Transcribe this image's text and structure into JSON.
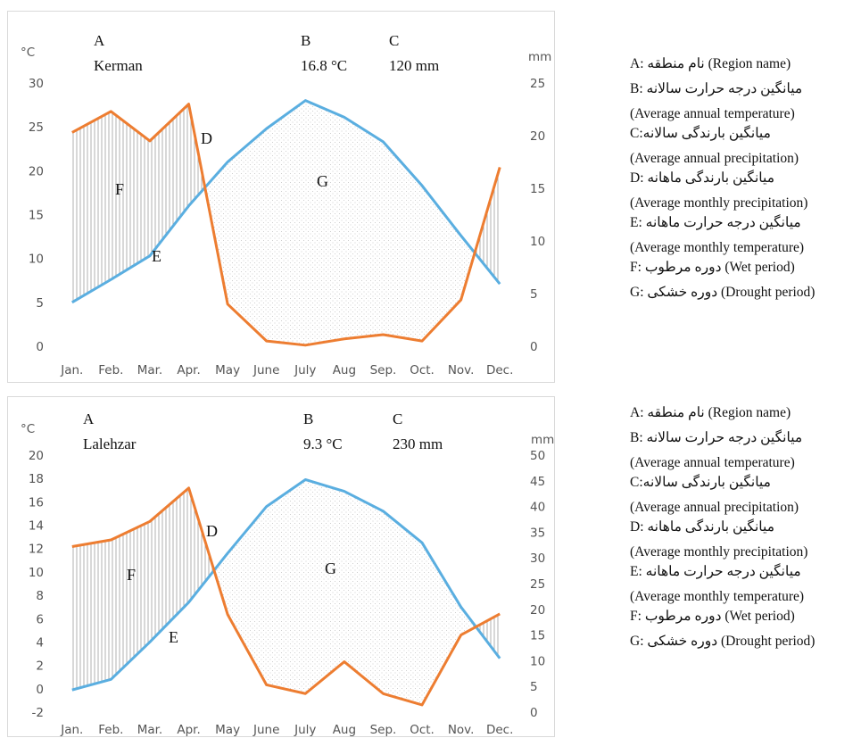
{
  "chart_data": [
    {
      "type": "line",
      "header": {
        "a_label": "A",
        "region": "Kerman",
        "b_label": "B",
        "avg_temp": "16.8 °C",
        "c_label": "C",
        "avg_precip": "120 mm"
      },
      "left_unit": "°C",
      "right_unit": "mm",
      "categories": [
        "Jan.",
        "Feb.",
        "Mar.",
        "Apr.",
        "May",
        "June",
        "July",
        "Aug",
        "Sep.",
        "Oct.",
        "Nov.",
        "Dec."
      ],
      "left_ticks": [
        "0",
        "5",
        "10",
        "15",
        "20",
        "25",
        "30"
      ],
      "right_ticks": [
        "0",
        "5",
        "10",
        "15",
        "20",
        "25"
      ],
      "ylim_left": [
        0,
        30
      ],
      "ylim_right": [
        0,
        25
      ],
      "series": [
        {
          "name": "Average monthly temperature",
          "axis": "left",
          "color": "#5aaee0",
          "values": [
            5.0,
            7.6,
            10.3,
            16.0,
            21.0,
            24.8,
            28.0,
            26.1,
            23.3,
            18.3,
            12.6,
            7.1
          ]
        },
        {
          "name": "Average monthly precipitation",
          "axis": "right",
          "color": "#ed7d31",
          "values": [
            20.3,
            22.3,
            19.5,
            23.0,
            4.0,
            0.5,
            0.1,
            0.7,
            1.1,
            0.5,
            4.4,
            17.0
          ]
        }
      ],
      "region_labels": {
        "D": "D",
        "E": "E",
        "F": "F",
        "G": "G"
      }
    },
    {
      "type": "line",
      "header": {
        "a_label": "A",
        "region": "Lalehzar",
        "b_label": "B",
        "avg_temp": "9.3 °C",
        "c_label": "C",
        "avg_precip": "230 mm"
      },
      "left_unit": "°C",
      "right_unit": "mm",
      "categories": [
        "Jan.",
        "Feb.",
        "Mar.",
        "Apr.",
        "May",
        "June",
        "July",
        "Aug",
        "Sep.",
        "Oct.",
        "Nov.",
        "Dec."
      ],
      "left_ticks": [
        "-2",
        "0",
        "2",
        "4",
        "6",
        "8",
        "10",
        "12",
        "14",
        "16",
        "18",
        "20"
      ],
      "right_ticks": [
        "0",
        "5",
        "10",
        "15",
        "20",
        "25",
        "30",
        "35",
        "40",
        "45",
        "50"
      ],
      "ylim_left": [
        -2,
        20
      ],
      "ylim_right": [
        0,
        50
      ],
      "series": [
        {
          "name": "Average monthly temperature",
          "axis": "left",
          "color": "#5aaee0",
          "values": [
            -0.1,
            0.8,
            4.0,
            7.4,
            11.6,
            15.6,
            17.9,
            16.9,
            15.2,
            12.5,
            7.0,
            2.6
          ]
        },
        {
          "name": "Average monthly precipitation",
          "axis": "right",
          "color": "#ed7d31",
          "values": [
            32.2,
            33.5,
            37.1,
            43.6,
            19.0,
            5.3,
            3.6,
            9.8,
            3.6,
            1.4,
            15.0,
            19.1
          ]
        }
      ],
      "region_labels": {
        "D": "D",
        "E": "E",
        "F": "F",
        "G": "G"
      }
    }
  ],
  "legend": [
    {
      "region_name": "A: نام منطقه (Region name)",
      "annual_temp_fa": "B: میانگین درجه حرارت سالانه",
      "annual_temp_en": "(Average annual temperature)",
      "annual_precip_fa": "C:میانگین بارندگی سالانه",
      "annual_precip_en": "(Average annual precipitation)",
      "monthly_precip_fa": "D: میانگین بارندگی ماهانه",
      "monthly_precip_en": "(Average monthly precipitation)",
      "monthly_temp_fa": "E: میانگین درجه حرارت ماهانه",
      "monthly_temp_en": "(Average monthly temperature)",
      "wet_period": "F: دوره مرطوب (Wet period)",
      "drought_period": "G: دوره خشکی (Drought period)"
    },
    {
      "region_name": "A: نام منطقه (Region name)",
      "annual_temp_fa": "B: میانگین درجه حرارت سالانه",
      "annual_temp_en": "(Average annual temperature)",
      "annual_precip_fa": "C:میانگین بارندگی سالانه",
      "annual_precip_en": "(Average annual precipitation)",
      "monthly_precip_fa": "D: میانگین بارندگی ماهانه",
      "monthly_precip_en": "(Average monthly precipitation)",
      "monthly_temp_fa": "E: میانگین درجه حرارت ماهانه",
      "monthly_temp_en": "(Average monthly temperature)",
      "wet_period": "F: دوره مرطوب (Wet period)",
      "drought_period": "G: دوره خشکی (Drought period)"
    }
  ]
}
